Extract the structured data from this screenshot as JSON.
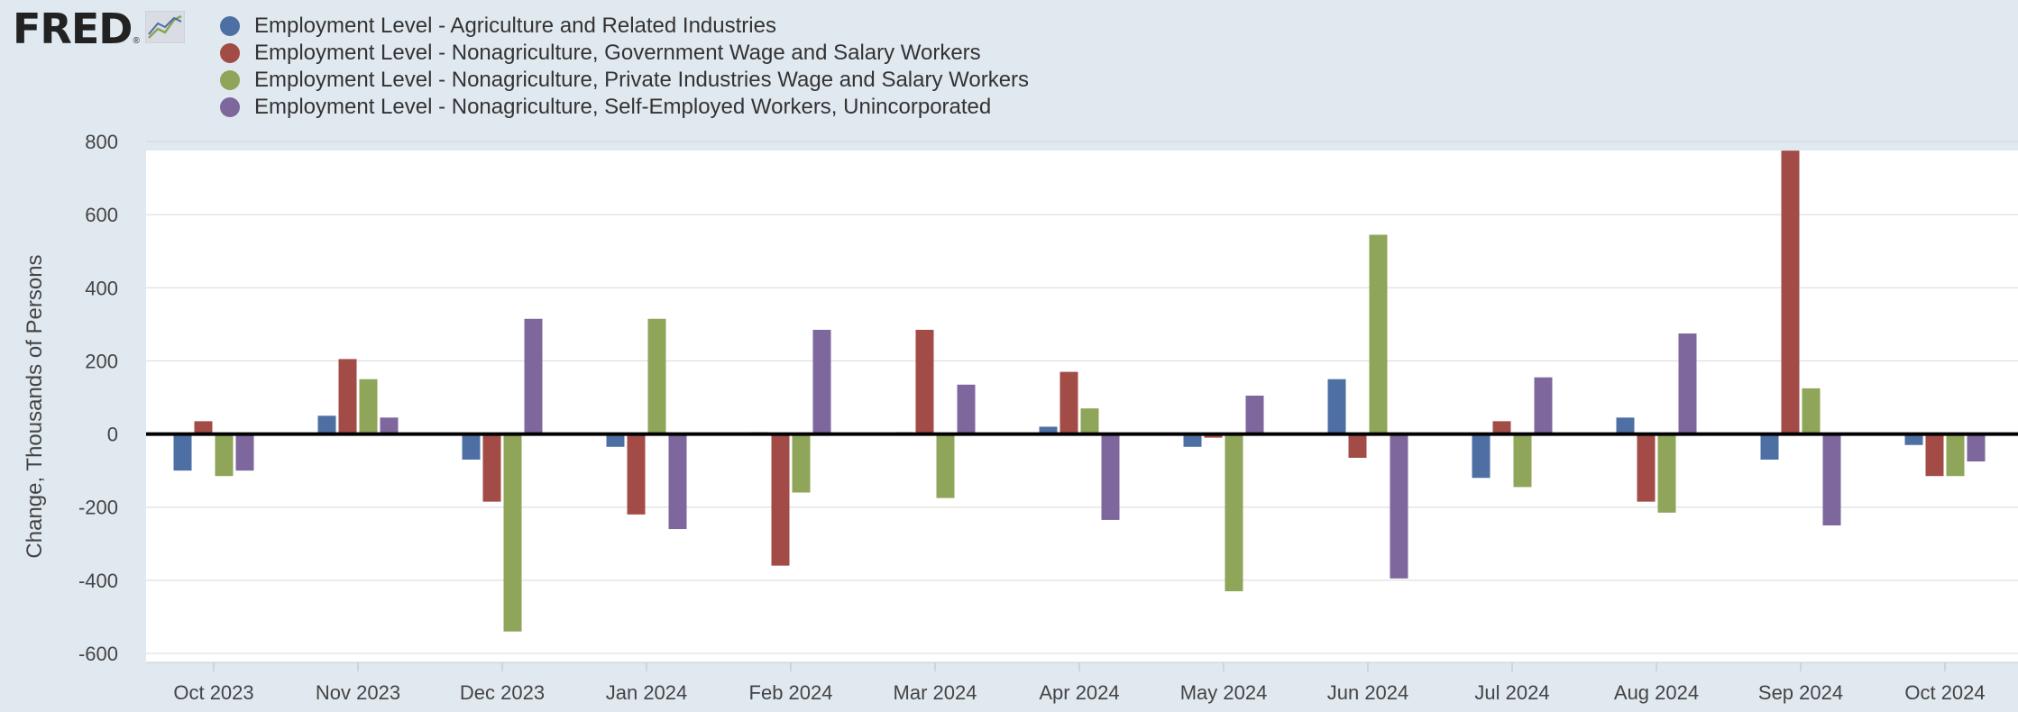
{
  "logo": {
    "text": "FRED",
    "reg": "®"
  },
  "colors": {
    "agriculture": "#4e6fa3",
    "government": "#a24b47",
    "private": "#8ea55a",
    "self_employed": "#7d679c",
    "plot_bg": "#ffffff",
    "page_bg": "#e1e9f0",
    "zero_line": "#000000",
    "grid": "#d8d8d8"
  },
  "chart_data": {
    "type": "bar",
    "title": "",
    "xlabel": "",
    "ylabel": "Change, Thousands of Persons",
    "ylim": [
      -600,
      800
    ],
    "yticks": [
      -600,
      -400,
      -200,
      0,
      200,
      400,
      600,
      800
    ],
    "grid": true,
    "legend_position": "top-left",
    "categories": [
      "Oct 2023",
      "Nov 2023",
      "Dec 2023",
      "Jan 2024",
      "Feb 2024",
      "Mar 2024",
      "Apr 2024",
      "May 2024",
      "Jun 2024",
      "Jul 2024",
      "Aug 2024",
      "Sep 2024",
      "Oct 2024"
    ],
    "series": [
      {
        "name": "Employment Level - Agriculture and Related Industries",
        "color": "#4e6fa3",
        "values": [
          -100,
          50,
          -70,
          -35,
          5,
          5,
          20,
          -35,
          150,
          -120,
          45,
          -70,
          -30
        ]
      },
      {
        "name": "Employment Level - Nonagriculture, Government Wage and Salary Workers",
        "color": "#a24b47",
        "values": [
          35,
          205,
          -185,
          -220,
          -360,
          285,
          170,
          -10,
          -65,
          35,
          -185,
          775,
          -115
        ]
      },
      {
        "name": "Employment Level - Nonagriculture, Private Industries Wage and Salary Workers",
        "color": "#8ea55a",
        "values": [
          -115,
          150,
          -540,
          315,
          -160,
          -175,
          70,
          -430,
          545,
          -145,
          -215,
          125,
          -115
        ]
      },
      {
        "name": "Employment Level - Nonagriculture, Self-Employed Workers, Unincorporated",
        "color": "#7d679c",
        "values": [
          -100,
          45,
          315,
          -260,
          285,
          135,
          -235,
          105,
          -395,
          155,
          275,
          -250,
          -75
        ]
      }
    ]
  }
}
